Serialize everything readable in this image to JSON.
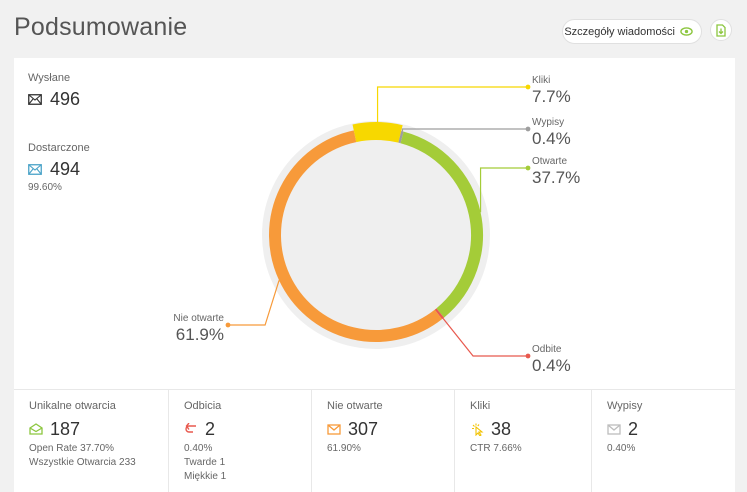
{
  "header": {
    "title": "Podsumowanie",
    "details_label": "Szczegóły wiadomości"
  },
  "summary": {
    "sent": {
      "label": "Wysłane",
      "value": "496"
    },
    "delivered": {
      "label": "Dostarczone",
      "value": "494",
      "percent": "99.60%"
    }
  },
  "chart_data": {
    "type": "pie",
    "style": "donut",
    "slices": [
      {
        "label": "Kliki",
        "display": "7.7%",
        "value": 7.7,
        "color": "#f7d800"
      },
      {
        "label": "Wypisy",
        "display": "0.4%",
        "value": 0.4,
        "color": "#9e9e9e"
      },
      {
        "label": "Otwarte",
        "display": "37.7%",
        "value": 37.7,
        "color": "#a4cc38"
      },
      {
        "label": "Odbite",
        "display": "0.4%",
        "value": 0.4,
        "color": "#e8594e"
      },
      {
        "label": "Nie otwarte",
        "display": "61.9%",
        "value": 61.9,
        "color": "#f79a3a"
      }
    ]
  },
  "metrics": [
    {
      "title": "Unikalne otwarcia",
      "value": "187",
      "icon": "envelope-open-icon",
      "color": "#8cc63f",
      "lines": [
        "Open Rate 37.70%",
        "Wszystkie Otwarcia 233"
      ]
    },
    {
      "title": "Odbicia",
      "value": "2",
      "icon": "bounce-arrow-icon",
      "color": "#e8594e",
      "lines": [
        "0.40%",
        "Twarde 1",
        "Miękkie 1"
      ]
    },
    {
      "title": "Nie otwarte",
      "value": "307",
      "icon": "envelope-closed-icon",
      "color": "#f79a3a",
      "lines": [
        "61.90%"
      ]
    },
    {
      "title": "Kliki",
      "value": "38",
      "icon": "click-icon",
      "color": "#f2c200",
      "lines": [
        "CTR 7.66%"
      ]
    },
    {
      "title": "Wypisy",
      "value": "2",
      "icon": "envelope-unsubscribe-icon",
      "color": "#bdbdbd",
      "lines": [
        "0.40%"
      ]
    }
  ]
}
